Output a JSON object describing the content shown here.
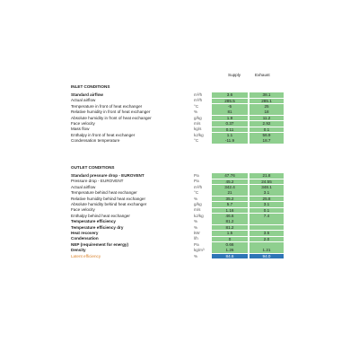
{
  "columns": {
    "supply": "Supply",
    "exhaust": "Exhaust"
  },
  "sections": [
    {
      "title": "INLET CONDITIONS",
      "rows": [
        {
          "label": "Standard airflow",
          "unit": "m³/h",
          "supply": "3.6",
          "exhaust": "38.1",
          "bold": true
        },
        {
          "label": "Actual airflow",
          "unit": "m³/h",
          "supply": "285.5",
          "exhaust": "285.1"
        },
        {
          "label": "Temperature in front of heat exchanger",
          "unit": "°C",
          "supply": "-5",
          "exhaust": "25"
        },
        {
          "label": "Relative humidity in front of heat exchanger",
          "unit": "%",
          "supply": "81",
          "exhaust": "18"
        },
        {
          "label": "Absolute humidity in front of heat exchanger",
          "unit": "g/kg",
          "supply": "1.9",
          "exhaust": "11.2"
        },
        {
          "label": "Face velocity",
          "unit": "m/s",
          "supply": "0.37",
          "exhaust": "2.92"
        },
        {
          "label": "Mass flow",
          "unit": "kg/s",
          "supply": "0.11",
          "exhaust": "0.1"
        },
        {
          "label": "Enthalpy in front of heat exchanger",
          "unit": "kJ/kg",
          "supply": "1.1",
          "exhaust": "56.9"
        },
        {
          "label": "Condensation temperature",
          "unit": "°C",
          "supply": "-11.9",
          "exhaust": "18.7"
        }
      ]
    },
    {
      "title": "OUTLET CONDITIONS",
      "rows": [
        {
          "label": "Standard pressure drop - EUROVENT",
          "unit": "Pa",
          "supply": "47.76",
          "exhaust": "21.8",
          "bold": true
        },
        {
          "label": "Pressure drop - EUROVENT",
          "unit": "Pa",
          "supply": "45.2",
          "exhaust": "24.55"
        },
        {
          "label": "Actual airflow",
          "unit": "m³/h",
          "supply": "342.4",
          "exhaust": "348.1"
        },
        {
          "label": "Temperature behind heat exchanger",
          "unit": "°C",
          "supply": "21",
          "exhaust": "3.1"
        },
        {
          "label": "Relative humidity behind heat exchanger",
          "unit": "%",
          "supply": "35.2",
          "exhaust": "25.8"
        },
        {
          "label": "Absolute humidity behind heat exchanger",
          "unit": "g/kg",
          "supply": "5.7",
          "exhaust": "3.1"
        },
        {
          "label": "Face velocity",
          "unit": "m/s",
          "supply": "1.16",
          "exhaust": "0.1"
        },
        {
          "label": "Enthalpy behind heat exchanger",
          "unit": "kJ/kg",
          "supply": "46.6",
          "exhaust": "7.4"
        },
        {
          "label": "Temperature efficiency",
          "unit": "%",
          "supply": "81.2",
          "bold": true
        },
        {
          "label": "Temperature efficiency dry",
          "unit": "%",
          "supply": "81.2",
          "bold": true
        },
        {
          "label": "Heat recovery",
          "unit": "kW",
          "supply": "1.5",
          "exhaust": "3.5",
          "bold": true
        },
        {
          "label": "Condensation",
          "unit": "l/h",
          "supply": "0",
          "exhaust": "2.0",
          "bold": true
        },
        {
          "label": "NEP (requirement for energy)",
          "unit": "Pa",
          "supply": "0.66",
          "bold": true
        },
        {
          "label": "Density",
          "unit": "kg/m³",
          "supply": "1.26",
          "exhaust": "1.21",
          "bold": true
        },
        {
          "label": "Latent efficiency",
          "unit": "%",
          "supply": "84.6",
          "exhaust": "94.0",
          "highlight": true
        }
      ]
    }
  ]
}
